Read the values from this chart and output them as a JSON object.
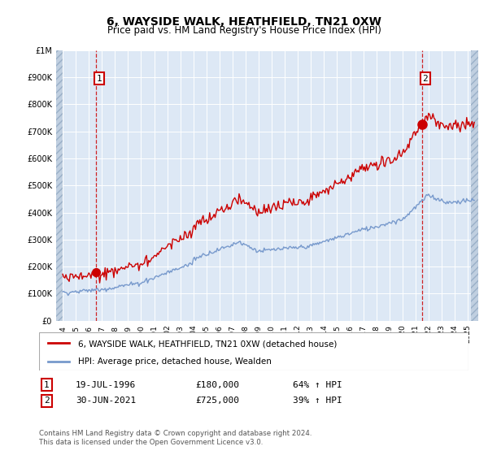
{
  "title": "6, WAYSIDE WALK, HEATHFIELD, TN21 0XW",
  "subtitle": "Price paid vs. HM Land Registry's House Price Index (HPI)",
  "hpi_color": "#7799cc",
  "price_color": "#cc0000",
  "sale1_date": 1996.55,
  "sale1_price": 180000,
  "sale2_date": 2021.5,
  "sale2_price": 725000,
  "ylim_max": 1000000,
  "xlim_min": 1993.5,
  "xlim_max": 2025.8,
  "legend_line1": "6, WAYSIDE WALK, HEATHFIELD, TN21 0XW (detached house)",
  "legend_line2": "HPI: Average price, detached house, Wealden",
  "annot1_date": "19-JUL-1996",
  "annot1_price": "£180,000",
  "annot1_hpi": "64% ↑ HPI",
  "annot2_date": "30-JUN-2021",
  "annot2_price": "£725,000",
  "annot2_hpi": "39% ↑ HPI",
  "footer": "Contains HM Land Registry data © Crown copyright and database right 2024.\nThis data is licensed under the Open Government Licence v3.0.",
  "bg_color": "#dde8f5",
  "hatch_color": "#c0cfe0"
}
